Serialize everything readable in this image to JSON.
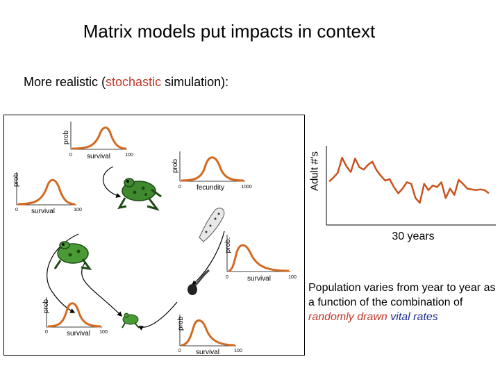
{
  "title": "Matrix models put impacts in context",
  "subtitle": {
    "before": "More realistic (",
    "highlight": "stochastic",
    "after": " simulation):"
  },
  "panels": [
    {
      "ylabel": "prob",
      "xlabel": "survival",
      "tick_min": "0",
      "tick_max": "100"
    },
    {
      "ylabel": "prob",
      "xlabel": "fecundity",
      "tick_min": "0",
      "tick_max": "1000"
    },
    {
      "ylabel": "prob",
      "xlabel": "survival",
      "tick_min": "0",
      "tick_max": "100"
    },
    {
      "ylabel": "prob.",
      "xlabel": "survival",
      "tick_min": "0",
      "tick_max": "100"
    },
    {
      "ylabel": "prob",
      "xlabel": "survival",
      "tick_min": "0",
      "tick_max": "100"
    },
    {
      "ylabel": "prob",
      "xlabel": "survival",
      "tick_min": "0",
      "tick_max": "100"
    }
  ],
  "timeseries": {
    "ylabel": "Adult #'s",
    "xlabel": "30 years",
    "values": [
      55,
      60,
      66,
      85,
      74,
      67,
      84,
      73,
      70,
      76,
      80,
      69,
      62,
      56,
      58,
      48,
      40,
      46,
      54,
      52,
      34,
      28,
      52,
      44,
      50,
      48,
      54,
      34,
      46,
      38,
      57,
      52,
      46,
      45,
      44,
      45,
      44,
      40
    ],
    "ylim": [
      0,
      100
    ],
    "color": "#c8521e"
  },
  "description": {
    "plain": "Population varies from year to year as a function of the combination of ",
    "red": "randomly drawn",
    "blue": "vital rates"
  },
  "colors": {
    "curve": "#d2691e",
    "stochastic": "#c0392b",
    "vital_rates": "#1a2c8f"
  }
}
